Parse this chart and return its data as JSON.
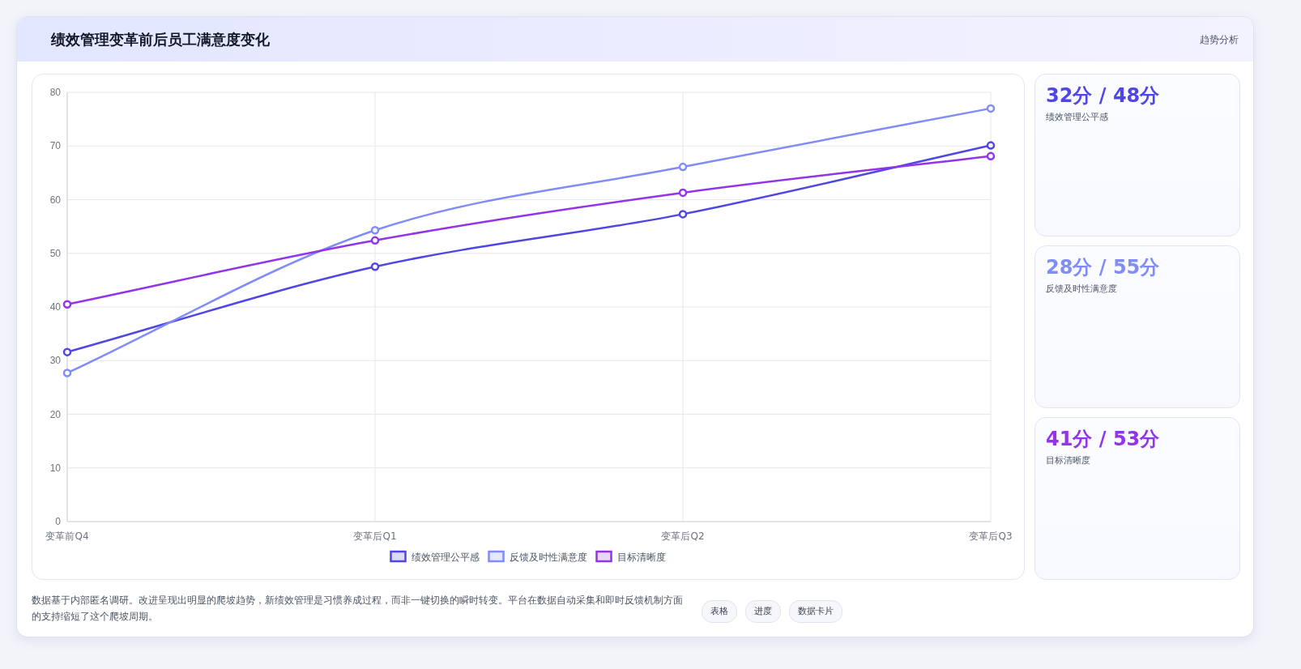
{
  "chart_data": [
    {
      "type": "line",
      "title": "绩效管理变革前后员工满意度变化",
      "categories": [
        "变革前Q4",
        "变革后Q1",
        "变革后Q2",
        "变革后Q3"
      ],
      "series": [
        {
          "name": "绩效管理公平感",
          "color": "#4f46e5",
          "values": [
            31.6,
            47.5,
            57.3,
            70.1
          ]
        },
        {
          "name": "反馈及时性满意度",
          "color": "#818cf8",
          "values": [
            27.7,
            54.3,
            66.1,
            77.0
          ]
        },
        {
          "name": "目标清晰度",
          "color": "#9333ea",
          "values": [
            40.5,
            52.4,
            61.3,
            68.1
          ]
        }
      ],
      "ylim": [
        0,
        80
      ],
      "yticks": [
        0,
        10,
        20,
        30,
        40,
        50,
        60,
        70,
        80
      ],
      "grid": true,
      "legend": "bottom",
      "marker": "circle",
      "annotations": [
        "趋势分析",
        "数据基于内部匿名调研。改进呈现出明显的爬坡趋势，新绩效管理是习惯养成过程，而非一键切换的瞬时转变。平台在数据自动采集和即时反馈机制方面的支持缩短了这个爬坡周期。",
        "表格",
        "进度",
        "数据卡片"
      ]
    },
    {
      "type": "other",
      "colors": [
        "#4f46e5",
        "#818cf8",
        "#9333ea"
      ],
      "annotations": [
        "32分 / 48分",
        "绩效管理公平感",
        "28分 / 55分",
        "反馈及时性满意度",
        "41分 / 53分",
        "目标清晰度"
      ]
    }
  ]
}
